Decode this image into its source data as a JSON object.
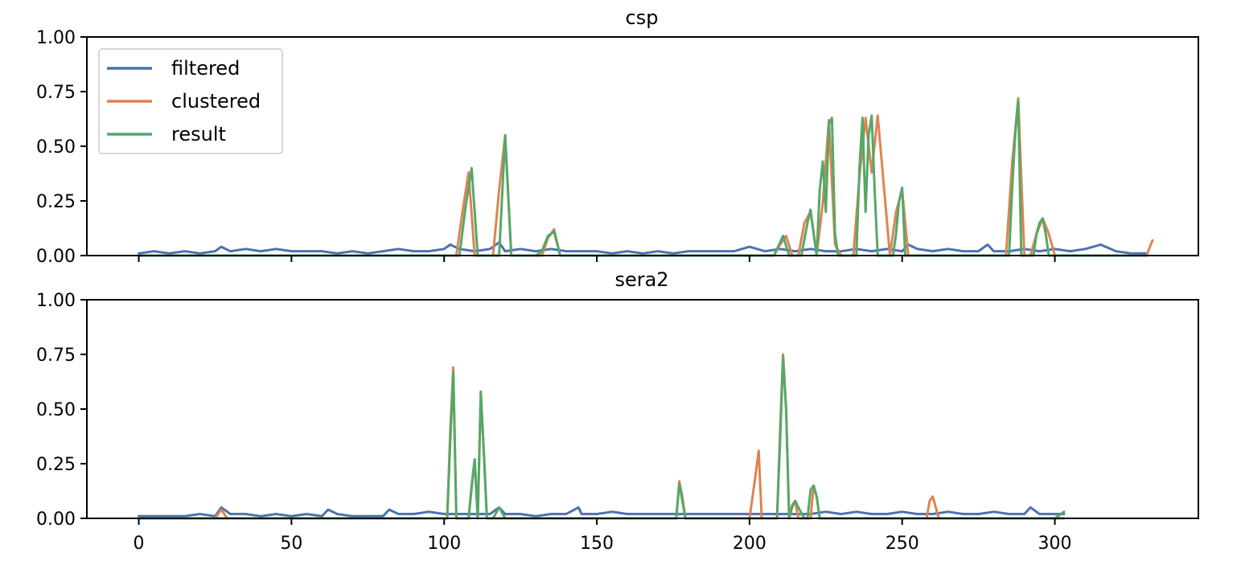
{
  "chart_data": [
    {
      "type": "line",
      "title": "csp",
      "ylim": [
        0,
        1
      ],
      "xlim": [
        -17,
        347
      ],
      "yticks": [
        "0.00",
        "0.25",
        "0.50",
        "0.75",
        "1.00"
      ],
      "xticks": [
        0,
        50,
        100,
        150,
        200,
        250,
        300
      ],
      "show_xtick_labels": false,
      "grid": false,
      "legend": {
        "placement": "top-left",
        "entries": [
          {
            "label": "filtered",
            "color": "#4c72b0"
          },
          {
            "label": "clustered",
            "color": "#dd8452"
          },
          {
            "label": "result",
            "color": "#55a868"
          }
        ]
      },
      "series": [
        {
          "name": "filtered",
          "color": "#4c72b0",
          "x": [
            0,
            5,
            10,
            15,
            20,
            25,
            27,
            30,
            35,
            40,
            45,
            50,
            55,
            60,
            65,
            70,
            75,
            80,
            85,
            90,
            95,
            100,
            102,
            105,
            110,
            115,
            118,
            120,
            125,
            130,
            135,
            140,
            145,
            150,
            155,
            160,
            165,
            170,
            175,
            180,
            185,
            190,
            195,
            200,
            205,
            210,
            215,
            220,
            225,
            230,
            235,
            240,
            245,
            250,
            252,
            255,
            260,
            265,
            270,
            275,
            278,
            280,
            285,
            290,
            295,
            300,
            305,
            310,
            315,
            320,
            325,
            330
          ],
          "y": [
            0.01,
            0.02,
            0.01,
            0.02,
            0.01,
            0.02,
            0.04,
            0.02,
            0.03,
            0.02,
            0.03,
            0.02,
            0.02,
            0.02,
            0.01,
            0.02,
            0.01,
            0.02,
            0.03,
            0.02,
            0.02,
            0.03,
            0.05,
            0.03,
            0.02,
            0.03,
            0.06,
            0.02,
            0.03,
            0.02,
            0.03,
            0.02,
            0.02,
            0.02,
            0.01,
            0.02,
            0.01,
            0.02,
            0.01,
            0.02,
            0.02,
            0.02,
            0.02,
            0.04,
            0.02,
            0.03,
            0.02,
            0.03,
            0.02,
            0.02,
            0.03,
            0.02,
            0.03,
            0.02,
            0.05,
            0.03,
            0.02,
            0.03,
            0.02,
            0.02,
            0.05,
            0.02,
            0.02,
            0.03,
            0.02,
            0.03,
            0.02,
            0.03,
            0.05,
            0.02,
            0.01,
            0.01
          ]
        },
        {
          "name": "clustered",
          "color": "#dd8452",
          "x": [
            0,
            104,
            106,
            108,
            110,
            116,
            118,
            120,
            122,
            124,
            132,
            134,
            136,
            138,
            208,
            210,
            212,
            214,
            216,
            218,
            220,
            222,
            224,
            226,
            228,
            230,
            234,
            236,
            238,
            240,
            242,
            246,
            248,
            250,
            252,
            284,
            286,
            288,
            290,
            292,
            294,
            296,
            298,
            300,
            330,
            332
          ],
          "y": [
            0,
            0,
            0.2,
            0.38,
            0,
            0,
            0.3,
            0.55,
            0,
            0,
            0,
            0.08,
            0.12,
            0,
            0,
            0.05,
            0.09,
            0,
            0,
            0.15,
            0.2,
            0,
            0.24,
            0.62,
            0.05,
            0,
            0,
            0.36,
            0.63,
            0.38,
            0.64,
            0,
            0.2,
            0.3,
            0,
            0,
            0.42,
            0.72,
            0,
            0,
            0.1,
            0.17,
            0.1,
            0,
            0,
            0.07
          ]
        },
        {
          "name": "result",
          "color": "#55a868",
          "x": [
            0,
            105,
            107,
            109,
            111,
            118,
            120,
            122,
            124,
            130,
            132,
            134,
            136,
            138,
            208,
            210,
            211,
            213,
            217,
            219,
            220,
            222,
            223,
            224,
            225,
            226,
            227,
            228,
            229,
            235,
            236,
            237,
            238,
            239,
            240,
            241,
            242,
            247,
            248,
            249,
            250,
            251,
            285,
            286,
            287,
            288,
            289,
            293,
            294,
            295,
            296,
            297,
            298,
            330
          ],
          "y": [
            0,
            0,
            0.22,
            0.4,
            0,
            0,
            0.55,
            0,
            0,
            0,
            0.02,
            0.09,
            0.11,
            0,
            0,
            0.06,
            0.09,
            0,
            0,
            0.15,
            0.21,
            0,
            0.3,
            0.43,
            0.2,
            0.6,
            0.63,
            0.1,
            0,
            0,
            0.4,
            0.63,
            0.2,
            0.55,
            0.64,
            0.3,
            0,
            0,
            0.1,
            0.25,
            0.31,
            0,
            0,
            0.3,
            0.55,
            0.71,
            0,
            0,
            0.1,
            0.15,
            0.17,
            0.1,
            0,
            0
          ]
        }
      ]
    },
    {
      "type": "line",
      "title": "sera2",
      "ylim": [
        0,
        1
      ],
      "xlim": [
        -17,
        347
      ],
      "yticks": [
        "0.00",
        "0.25",
        "0.50",
        "0.75",
        "1.00"
      ],
      "xticks": [
        0,
        50,
        100,
        150,
        200,
        250,
        300
      ],
      "show_xtick_labels": true,
      "grid": false,
      "series": [
        {
          "name": "filtered",
          "color": "#4c72b0",
          "x": [
            0,
            5,
            10,
            15,
            20,
            25,
            27,
            30,
            35,
            40,
            45,
            50,
            55,
            60,
            62,
            65,
            70,
            75,
            80,
            82,
            85,
            90,
            95,
            100,
            105,
            110,
            115,
            118,
            120,
            125,
            130,
            135,
            140,
            144,
            145,
            150,
            155,
            160,
            165,
            170,
            175,
            180,
            185,
            190,
            195,
            200,
            205,
            210,
            215,
            220,
            225,
            230,
            235,
            240,
            245,
            250,
            255,
            260,
            265,
            270,
            275,
            280,
            285,
            290,
            292,
            295,
            300,
            303
          ],
          "y": [
            0.01,
            0.01,
            0.01,
            0.01,
            0.02,
            0.01,
            0.05,
            0.02,
            0.02,
            0.01,
            0.02,
            0.01,
            0.02,
            0.01,
            0.04,
            0.02,
            0.01,
            0.01,
            0.01,
            0.04,
            0.02,
            0.02,
            0.03,
            0.02,
            0.02,
            0.02,
            0.02,
            0.05,
            0.02,
            0.02,
            0.01,
            0.02,
            0.02,
            0.05,
            0.02,
            0.02,
            0.03,
            0.02,
            0.02,
            0.02,
            0.02,
            0.02,
            0.02,
            0.02,
            0.02,
            0.02,
            0.02,
            0.02,
            0.02,
            0.02,
            0.03,
            0.02,
            0.03,
            0.02,
            0.02,
            0.03,
            0.02,
            0.02,
            0.03,
            0.02,
            0.02,
            0.03,
            0.02,
            0.02,
            0.05,
            0.02,
            0.02,
            0.02
          ]
        },
        {
          "name": "clustered",
          "color": "#dd8452",
          "x": [
            0,
            25,
            27,
            29,
            101,
            102,
            103,
            104,
            108,
            110,
            111,
            112,
            113,
            114,
            176,
            177,
            178,
            179,
            200,
            202,
            203,
            204,
            209,
            210,
            211,
            212,
            213,
            214,
            215,
            216,
            220,
            221,
            222,
            223,
            258,
            259,
            260,
            261,
            262,
            303
          ],
          "y": [
            0,
            0,
            0.04,
            0,
            0,
            0.4,
            0.69,
            0,
            0,
            0.27,
            0,
            0.57,
            0.3,
            0,
            0,
            0.17,
            0.1,
            0,
            0,
            0.2,
            0.31,
            0,
            0,
            0.4,
            0.75,
            0.5,
            0,
            0.05,
            0.08,
            0,
            0,
            0.15,
            0.1,
            0,
            0,
            0.08,
            0.1,
            0.05,
            0,
            0
          ]
        },
        {
          "name": "result",
          "color": "#55a868",
          "x": [
            0,
            101,
            102,
            103,
            104,
            108,
            109,
            110,
            111,
            112,
            113,
            114,
            116,
            118,
            120,
            176,
            177,
            178,
            179,
            209,
            210,
            211,
            212,
            213,
            214,
            215,
            216,
            218,
            219,
            220,
            221,
            222,
            223,
            300,
            302,
            303
          ],
          "y": [
            0,
            0,
            0.35,
            0.67,
            0,
            0,
            0.15,
            0.27,
            0,
            0.58,
            0.3,
            0,
            0,
            0.05,
            0,
            0,
            0.16,
            0.08,
            0,
            0,
            0.35,
            0.74,
            0.5,
            0,
            0.06,
            0.08,
            0.05,
            0,
            0,
            0.13,
            0.15,
            0.1,
            0,
            0,
            0.02,
            0.03
          ]
        }
      ]
    }
  ]
}
